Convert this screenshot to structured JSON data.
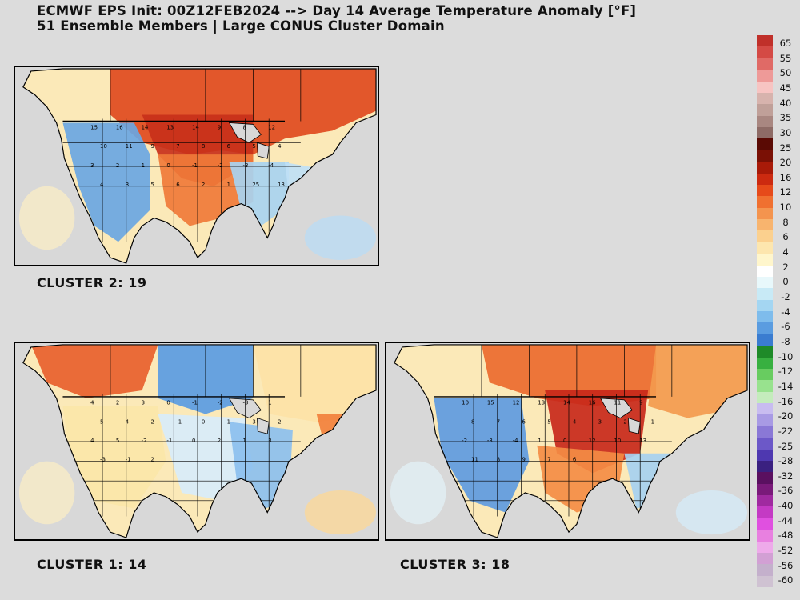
{
  "title": {
    "line1": "ECMWF EPS Init: 00Z12FEB2024 --> Day 14 Average Temperature Anomaly [°F]",
    "line2": "51 Ensemble Members | Large CONUS Cluster Domain"
  },
  "panels": [
    {
      "id": "cluster2",
      "label": "CLUSTER 2: 19",
      "theme": "warm_north"
    },
    {
      "id": "cluster1",
      "label": "CLUSTER 1: 14",
      "theme": "cool_north"
    },
    {
      "id": "cluster3",
      "label": "CLUSTER 3: 18",
      "theme": "warm_central"
    }
  ],
  "colorbar": {
    "labels": [
      "65",
      "55",
      "50",
      "45",
      "40",
      "35",
      "30",
      "25",
      "20",
      "16",
      "12",
      "10",
      "8",
      "6",
      "4",
      "2",
      "0",
      "-2",
      "-4",
      "-6",
      "-8",
      "-10",
      "-12",
      "-14",
      "-16",
      "-20",
      "-22",
      "-25",
      "-28",
      "-32",
      "-36",
      "-40",
      "-44",
      "-48",
      "-52",
      "-56",
      "-60"
    ],
    "colors": [
      "#c0302a",
      "#d44a45",
      "#e06a66",
      "#ee9a98",
      "#f7c4c2",
      "#d7b3ad",
      "#c0a099",
      "#a98781",
      "#8e6b66",
      "#5a0a04",
      "#7a1005",
      "#a81a08",
      "#cc2a10",
      "#e64a1a",
      "#f07030",
      "#f4944e",
      "#f8b46e",
      "#fbd08e",
      "#fde6ae",
      "#fff6cc",
      "#ffffff",
      "#e8f8fb",
      "#c8eaf6",
      "#a4d6f2",
      "#7ebcec",
      "#5a9ce0",
      "#3a7cd0",
      "#1e8a28",
      "#38b040",
      "#68cc60",
      "#98e28e",
      "#c4ecbc",
      "#c8bcf0",
      "#a89ae4",
      "#8a78d6",
      "#6c58c8",
      "#4e38b0",
      "#3a2080",
      "#5a1060",
      "#7a1a7a",
      "#a02aa0",
      "#c43ac4",
      "#e050e0",
      "#e880e0",
      "#eeaaea",
      "#d2a0d4",
      "#c4b0cc",
      "#cfc2d2"
    ]
  },
  "values": {
    "cluster2": [
      "15",
      "16",
      "14",
      "13",
      "14",
      "9",
      "8",
      "12",
      "10",
      "11",
      "9",
      "7",
      "8",
      "6",
      "5",
      "4",
      "3",
      "2",
      "1",
      "0",
      "-1",
      "-2",
      "-3",
      "-4",
      "4",
      "3",
      "5",
      "6",
      "2",
      "1",
      "25",
      "13"
    ],
    "cluster1": [
      "4",
      "2",
      "3",
      "0",
      "-1",
      "-2",
      "-3",
      "1",
      "5",
      "4",
      "2",
      "-1",
      "0",
      "1",
      "3",
      "2",
      "4",
      "5",
      "-2",
      "-1",
      "0",
      "2",
      "1",
      "3",
      "-3",
      "-1",
      "2"
    ],
    "cluster3": [
      "10",
      "15",
      "12",
      "13",
      "14",
      "16",
      "11",
      "9",
      "8",
      "7",
      "6",
      "5",
      "4",
      "3",
      "2",
      "-1",
      "-2",
      "-3",
      "-4",
      "1",
      "0",
      "12",
      "10",
      "13",
      "11",
      "8",
      "9",
      "7",
      "6"
    ]
  }
}
